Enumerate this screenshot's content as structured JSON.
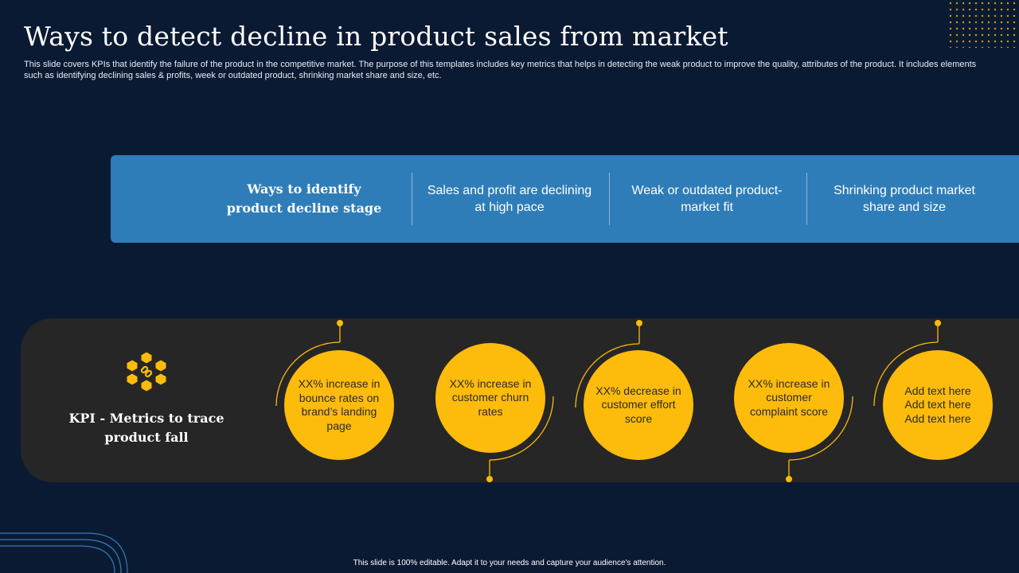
{
  "slide": {
    "title": "Ways to detect decline in product sales from market",
    "subtitle": "This slide covers KPIs that identify the failure of the product in the competitive market. The purpose of this templates includes key metrics that helps in detecting the weak product to improve the quality, attributes of the product. It includes elements such as identifying declining sales & profits, week or outdated product, shrinking market share and size, etc.",
    "footer": "This slide is 100% editable. Adapt it to your needs and capture your audience's attention."
  },
  "ways": {
    "heading": "Ways to identify product decline stage",
    "items": [
      "Sales and profit are declining at high pace",
      "Weak or outdated product-market fit",
      "Shrinking product market share and size"
    ]
  },
  "kpi": {
    "heading": "KPI - Metrics to trace product fall",
    "icon": "blockchain-cubes-icon",
    "circles": [
      "XX% increase in bounce rates on brand’s landing page",
      "XX% increase in customer churn rates",
      "XX% decrease in customer effort score",
      "XX% increase in customer complaint score",
      "Add text here Add text here Add text here"
    ]
  },
  "colors": {
    "background": "#0b1a33",
    "panel_blue": "#2e7db8",
    "panel_dark": "#262626",
    "accent_yellow": "#fdbb0b"
  }
}
